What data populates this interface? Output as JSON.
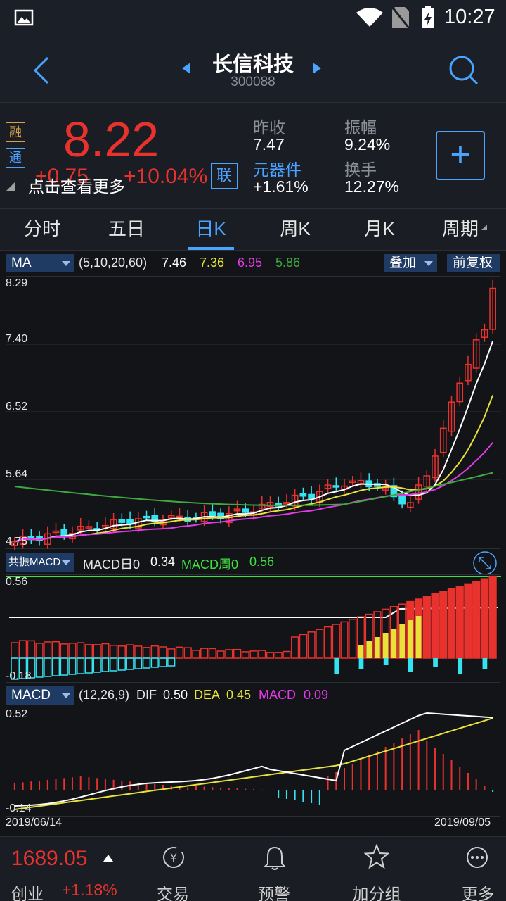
{
  "status": {
    "time": "10:27"
  },
  "header": {
    "title": "长信科技",
    "code": "300088"
  },
  "quote": {
    "badge1": "融",
    "badge2": "通",
    "price": "8.22",
    "change": "+0.75",
    "change_pct": "+10.04%",
    "lian": "联",
    "overlay_text": "点击查看更多",
    "prev_close_label": "昨收",
    "prev_close": "7.47",
    "amplitude_label": "振幅",
    "amplitude": "9.24%",
    "sector_label": "元器件",
    "sector_change": "+1.61%",
    "turnover_label": "换手",
    "turnover": "12.27%",
    "add_label": "+"
  },
  "tabs": [
    "分时",
    "五日",
    "日K",
    "周K",
    "月K",
    "周期"
  ],
  "kline": {
    "indicator": "MA",
    "params": "(5,10,20,60)",
    "ma5": "7.46",
    "ma10": "7.36",
    "ma20": "6.95",
    "ma60": "5.86",
    "overlay_btn": "叠加",
    "adjust_btn": "前复权",
    "y_ticks": [
      "8.29",
      "7.40",
      "6.52",
      "5.64",
      "4.75"
    ]
  },
  "resonance": {
    "indicator": "共振MACD",
    "day_label": "MACD日0",
    "day_value": "0.34",
    "week_label": "MACD周0",
    "week_value": "0.56",
    "y_top": "0.56",
    "y_bottom": "-0.18"
  },
  "macd": {
    "indicator": "MACD",
    "params": "(12,26,9)",
    "dif_label": "DIF",
    "dif": "0.50",
    "dea_label": "DEA",
    "dea": "0.45",
    "macd_label": "MACD",
    "macd_value": "0.09",
    "y_top": "0.52",
    "y_bottom": "-0.14",
    "date_start": "2019/06/14",
    "date_end": "2019/09/05"
  },
  "bottom": {
    "index_value": "1689.05",
    "index_name": "创业",
    "index_change": "+1.18%",
    "nav": [
      "交易",
      "预警",
      "加分组",
      "更多"
    ]
  },
  "colors": {
    "up": "#e8322e",
    "down": "#35e2f0",
    "ma5": "#ffffff",
    "ma10": "#e9e23a",
    "ma20": "#e23ae6",
    "ma60": "#3faa3f",
    "accent": "#4aa3ff"
  }
}
